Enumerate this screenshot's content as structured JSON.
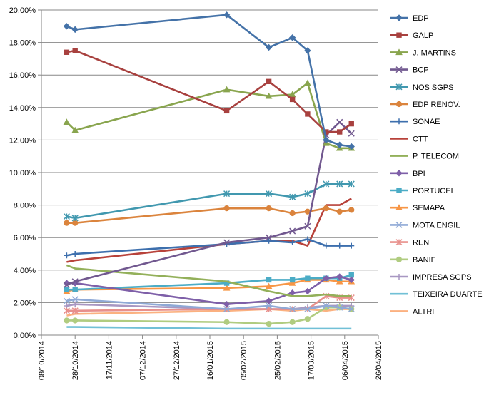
{
  "chart_data": {
    "type": "line",
    "title": "",
    "xlabel": "",
    "ylabel": "",
    "ylim": [
      0,
      0.2
    ],
    "xlim": [
      "2014-10-08",
      "2015-04-26"
    ],
    "y_ticks": [
      "0,00%",
      "2,00%",
      "4,00%",
      "6,00%",
      "8,00%",
      "10,00%",
      "12,00%",
      "14,00%",
      "16,00%",
      "18,00%",
      "20,00%"
    ],
    "x_ticks": [
      "08/10/2014",
      "28/10/2014",
      "17/11/2014",
      "07/12/2014",
      "27/12/2014",
      "16/01/2015",
      "05/02/2015",
      "25/02/2015",
      "17/03/2015",
      "06/04/2015",
      "26/04/2015"
    ],
    "grid": "horizontal",
    "legend_position": "right",
    "x": [
      "2014-10-23",
      "2014-10-28",
      "2015-01-26",
      "2015-02-20",
      "2015-03-06",
      "2015-03-15",
      "2015-03-26",
      "2015-04-03",
      "2015-04-10"
    ],
    "series": [
      {
        "name": "EDP",
        "color": "#4472A8",
        "marker": "diamond",
        "values": [
          0.19,
          0.188,
          0.197,
          0.177,
          0.183,
          0.175,
          0.12,
          0.117,
          0.116
        ]
      },
      {
        "name": "GALP",
        "color": "#A8413F",
        "marker": "square",
        "values": [
          0.174,
          0.175,
          0.138,
          0.156,
          0.145,
          0.136,
          0.125,
          0.125,
          0.13
        ]
      },
      {
        "name": "J. MARTINS",
        "color": "#89A54E",
        "marker": "triangle",
        "values": [
          0.131,
          0.126,
          0.151,
          0.147,
          0.148,
          0.155,
          0.118,
          0.115,
          0.115
        ]
      },
      {
        "name": "BCP",
        "color": "#71588F",
        "marker": "x",
        "values": [
          0.031,
          0.033,
          0.057,
          0.06,
          0.064,
          0.067,
          0.123,
          0.131,
          0.124
        ]
      },
      {
        "name": "NOS SGPS",
        "color": "#4198AF",
        "marker": "star",
        "values": [
          0.073,
          0.072,
          0.087,
          0.087,
          0.085,
          0.087,
          0.093,
          0.093,
          0.093
        ]
      },
      {
        "name": "EDP RENOV.",
        "color": "#DB843D",
        "marker": "circle",
        "values": [
          0.069,
          0.069,
          0.078,
          0.078,
          0.075,
          0.076,
          0.078,
          0.076,
          0.077
        ]
      },
      {
        "name": "SONAE",
        "color": "#3D6FAD",
        "marker": "plus",
        "values": [
          0.049,
          0.05,
          0.056,
          0.058,
          0.057,
          0.059,
          0.055,
          0.055,
          0.055
        ]
      },
      {
        "name": "CTT",
        "color": "#B8423A",
        "marker": "none",
        "values": [
          0.045,
          0.046,
          0.056,
          0.058,
          0.058,
          0.055,
          0.08,
          0.08,
          0.084
        ]
      },
      {
        "name": "P. TELECOM",
        "color": "#93B05A",
        "marker": "none",
        "values": [
          0.043,
          0.041,
          0.033,
          0.027,
          0.024,
          0.024,
          0.025,
          0.024,
          0.024
        ]
      },
      {
        "name": "BPI",
        "color": "#7E5FA8",
        "marker": "diamond",
        "values": [
          0.032,
          0.032,
          0.019,
          0.021,
          0.026,
          0.027,
          0.035,
          0.036,
          0.034
        ]
      },
      {
        "name": "PORTUCEL",
        "color": "#4BACC6",
        "marker": "square",
        "values": [
          0.028,
          0.028,
          0.032,
          0.034,
          0.034,
          0.035,
          0.035,
          0.035,
          0.037
        ]
      },
      {
        "name": "SEMAPA",
        "color": "#F79646",
        "marker": "triangle",
        "values": [
          0.027,
          0.028,
          0.029,
          0.03,
          0.032,
          0.034,
          0.034,
          0.033,
          0.033
        ]
      },
      {
        "name": "MOTA ENGIL",
        "color": "#8FA9D6",
        "marker": "x",
        "values": [
          0.021,
          0.022,
          0.016,
          0.018,
          0.016,
          0.016,
          0.018,
          0.017,
          0.016
        ]
      },
      {
        "name": "REN",
        "color": "#E8908C",
        "marker": "star",
        "values": [
          0.015,
          0.015,
          0.016,
          0.016,
          0.016,
          0.016,
          0.024,
          0.023,
          0.023
        ]
      },
      {
        "name": "BANIF",
        "color": "#B0CC80",
        "marker": "circle",
        "values": [
          0.009,
          0.009,
          0.008,
          0.007,
          0.008,
          0.01,
          0.017,
          0.017,
          0.016
        ]
      },
      {
        "name": "IMPRESA SGPS",
        "color": "#A897C2",
        "marker": "plus",
        "values": [
          0.018,
          0.019,
          0.016,
          0.016,
          0.016,
          0.017,
          0.018,
          0.018,
          0.018
        ]
      },
      {
        "name": "TEIXEIRA DUARTE",
        "color": "#71C0D6",
        "marker": "none",
        "values": [
          0.005,
          0.005,
          0.004,
          0.004,
          0.004,
          0.004,
          0.004,
          0.004,
          0.004
        ]
      },
      {
        "name": "ALTRI",
        "color": "#FBB180",
        "marker": "none",
        "values": [
          0.012,
          0.013,
          0.015,
          0.016,
          0.015,
          0.016,
          0.015,
          0.016,
          0.016
        ]
      }
    ]
  }
}
